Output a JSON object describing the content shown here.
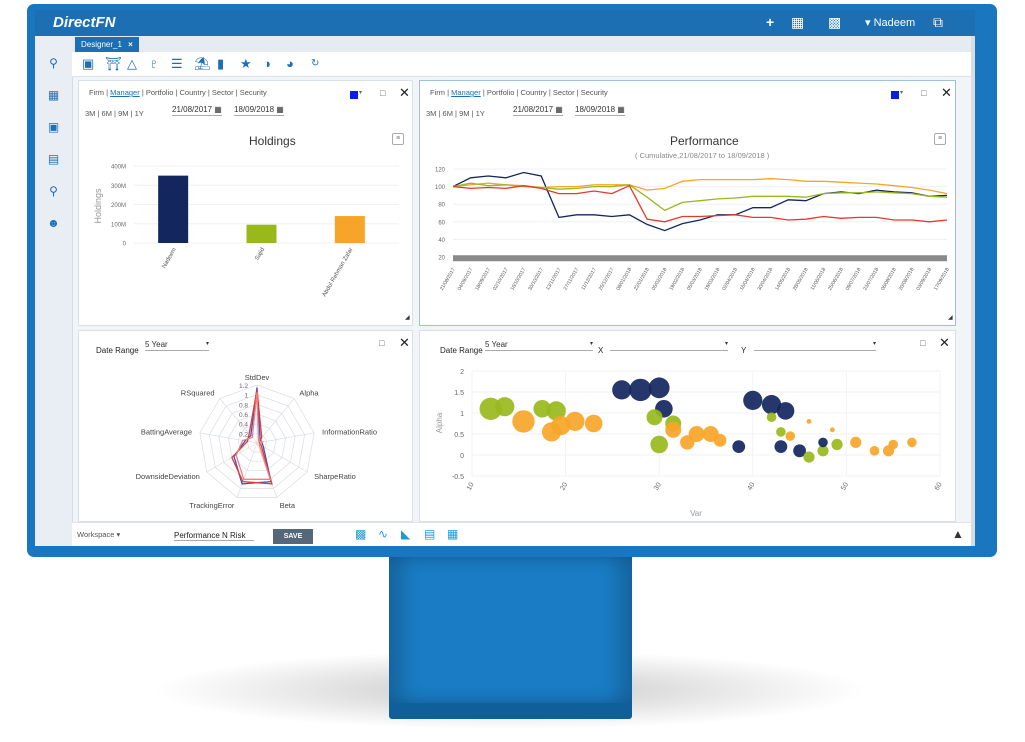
{
  "app": {
    "brand": "DirectFN",
    "user": "Nadeem"
  },
  "tabs": [
    {
      "label": "Designer_1",
      "close": "×"
    }
  ],
  "holdings_panel": {
    "filter_items": [
      "Firm",
      "Manager",
      "Portfolio",
      "Country",
      "Sector",
      "Security"
    ],
    "ranges": [
      "3M",
      "6M",
      "9M",
      "1Y"
    ],
    "from_date": "21/08/2017",
    "to_date": "18/09/2018",
    "title": "Holdings"
  },
  "performance_panel": {
    "filter_items": [
      "Firm",
      "Manager",
      "Portfolio",
      "Country",
      "Sector",
      "Security"
    ],
    "ranges": [
      "3M",
      "6M",
      "9M",
      "1Y"
    ],
    "from_date": "21/08/2017",
    "to_date": "18/09/2018",
    "title": "Performance",
    "subtitle": "( Cumulative,21/08/2017 to 18/09/2018 )"
  },
  "risk_panel": {
    "date_range_label": "Date Range",
    "date_range_value": "5 Year"
  },
  "scatter_panel": {
    "date_range_label": "Date Range",
    "date_range_value": "5 Year",
    "x_label": "X",
    "y_label": "Y"
  },
  "footer": {
    "workspace_label": "Workspace",
    "workspace_value": "Performance N Risk",
    "save_label": "SAVE"
  },
  "colors": {
    "accent": "#1d6fb4",
    "navy": "#14265e",
    "green": "#99b81c",
    "orange": "#f7a528",
    "red": "#e8382c",
    "color_picker": "#0b1de8"
  },
  "chart_data": [
    {
      "type": "bar",
      "title": "Holdings",
      "ylabel": "Holdings",
      "categories": [
        "Nadeem",
        "Sajid",
        "Abdul Rehman Zafar"
      ],
      "values": [
        350,
        95,
        140
      ],
      "ylim": [
        0,
        400
      ],
      "yticks": [
        "0",
        "100M",
        "200M",
        "300M",
        "400M"
      ],
      "colors": [
        "#14265e",
        "#99b81c",
        "#f7a528"
      ]
    },
    {
      "type": "line",
      "title": "Performance",
      "subtitle": "( Cumulative,21/08/2017 to 18/09/2018 )",
      "ylim": [
        20,
        120
      ],
      "yticks": [
        20,
        40,
        60,
        80,
        100,
        120
      ],
      "x": [
        "21/08/2017",
        "04/09/2017",
        "18/09/2017",
        "02/10/2017",
        "16/10/2017",
        "30/10/2017",
        "13/11/2017",
        "27/11/2017",
        "11/12/2017",
        "25/12/2017",
        "08/01/2018",
        "22/01/2018",
        "05/02/2018",
        "19/02/2018",
        "05/03/2018",
        "19/03/2018",
        "02/04/2018",
        "16/04/2018",
        "30/04/2018",
        "14/05/2018",
        "28/05/2018",
        "11/06/2018",
        "25/06/2018",
        "09/07/2018",
        "23/07/2018",
        "06/08/2018",
        "20/08/2018",
        "03/09/2018",
        "17/09/2018"
      ],
      "series": [
        {
          "color": "#14265e",
          "values": [
            100,
            110,
            112,
            110,
            116,
            112,
            65,
            68,
            68,
            66,
            68,
            57,
            50,
            58,
            62,
            68,
            68,
            76,
            76,
            85,
            84,
            92,
            94,
            92,
            96,
            94,
            93,
            89,
            90
          ]
        },
        {
          "color": "#f7a528",
          "values": [
            100,
            102,
            104,
            102,
            101,
            99,
            100,
            100,
            102,
            102,
            102,
            96,
            98,
            106,
            108,
            108,
            108,
            108,
            109,
            108,
            106,
            106,
            105,
            104,
            103,
            101,
            99,
            96,
            92
          ]
        },
        {
          "color": "#99b81c",
          "values": [
            100,
            104,
            101,
            102,
            100,
            99,
            97,
            98,
            100,
            100,
            102,
            88,
            73,
            82,
            84,
            86,
            87,
            89,
            89,
            89,
            88,
            92,
            93,
            93,
            94,
            93,
            92,
            89,
            88
          ]
        },
        {
          "color": "#e8382c",
          "values": [
            100,
            98,
            99,
            98,
            101,
            98,
            92,
            92,
            95,
            92,
            101,
            63,
            60,
            66,
            66,
            67,
            68,
            65,
            65,
            62,
            63,
            66,
            64,
            65,
            65,
            62,
            62,
            60,
            62
          ]
        }
      ]
    },
    {
      "type": "radar",
      "axes": [
        "StdDev",
        "Alpha",
        "InformationRatio",
        "SharpeRatio",
        "Beta",
        "TrackingError",
        "DownsideDeviation",
        "BattingAverage",
        "RSquared"
      ],
      "rticks": [
        "0.2",
        "0.4",
        "0.6",
        "0.8",
        "1",
        "1.2"
      ],
      "series": [
        {
          "color": "#3a56c8",
          "values": [
            1.15,
            0.1,
            0.1,
            0.15,
            0.85,
            0.9,
            0.55,
            0.25,
            0.2
          ]
        },
        {
          "color": "#e8382c",
          "values": [
            1.1,
            0.15,
            0.05,
            0.1,
            0.9,
            0.85,
            0.6,
            0.2,
            0.25
          ]
        },
        {
          "color": "#f08080",
          "values": [
            1.05,
            0.05,
            0.12,
            0.05,
            0.8,
            0.8,
            0.5,
            0.3,
            0.15
          ]
        }
      ]
    },
    {
      "type": "scatter",
      "xlabel": "Var",
      "ylabel": "Alpha",
      "xlim": [
        10,
        60
      ],
      "ylim": [
        -0.5,
        2
      ],
      "xticks": [
        10,
        20,
        30,
        40,
        50,
        60
      ],
      "yticks": [
        -0.5,
        0,
        0.5,
        1,
        1.5,
        2
      ],
      "points": [
        {
          "x": 12,
          "y": 1.1,
          "s": 14,
          "c": "#99b81c"
        },
        {
          "x": 13.5,
          "y": 1.15,
          "s": 12,
          "c": "#99b81c"
        },
        {
          "x": 15.5,
          "y": 0.8,
          "s": 14,
          "c": "#f7a528"
        },
        {
          "x": 17.5,
          "y": 1.1,
          "s": 11,
          "c": "#99b81c"
        },
        {
          "x": 19,
          "y": 1.05,
          "s": 12,
          "c": "#99b81c"
        },
        {
          "x": 18.5,
          "y": 0.55,
          "s": 12,
          "c": "#f7a528"
        },
        {
          "x": 19.5,
          "y": 0.7,
          "s": 12,
          "c": "#f7a528"
        },
        {
          "x": 21,
          "y": 0.8,
          "s": 12,
          "c": "#f7a528"
        },
        {
          "x": 23,
          "y": 0.75,
          "s": 11,
          "c": "#f7a528"
        },
        {
          "x": 26,
          "y": 1.55,
          "s": 12,
          "c": "#14265e"
        },
        {
          "x": 28,
          "y": 1.55,
          "s": 14,
          "c": "#14265e"
        },
        {
          "x": 30,
          "y": 1.6,
          "s": 13,
          "c": "#14265e"
        },
        {
          "x": 30.5,
          "y": 1.1,
          "s": 11,
          "c": "#14265e"
        },
        {
          "x": 29.5,
          "y": 0.9,
          "s": 10,
          "c": "#99b81c"
        },
        {
          "x": 31.5,
          "y": 0.75,
          "s": 10,
          "c": "#99b81c"
        },
        {
          "x": 33,
          "y": 0.3,
          "s": 9,
          "c": "#f7a528"
        },
        {
          "x": 30,
          "y": 0.25,
          "s": 11,
          "c": "#99b81c"
        },
        {
          "x": 31.5,
          "y": 0.6,
          "s": 10,
          "c": "#f7a528"
        },
        {
          "x": 34,
          "y": 0.5,
          "s": 10,
          "c": "#f7a528"
        },
        {
          "x": 35.5,
          "y": 0.5,
          "s": 10,
          "c": "#f7a528"
        },
        {
          "x": 36.5,
          "y": 0.35,
          "s": 8,
          "c": "#f7a528"
        },
        {
          "x": 38.5,
          "y": 0.2,
          "s": 8,
          "c": "#14265e"
        },
        {
          "x": 40,
          "y": 1.3,
          "s": 12,
          "c": "#14265e"
        },
        {
          "x": 42,
          "y": 1.2,
          "s": 12,
          "c": "#14265e"
        },
        {
          "x": 43.5,
          "y": 1.05,
          "s": 11,
          "c": "#14265e"
        },
        {
          "x": 42,
          "y": 0.9,
          "s": 6,
          "c": "#99b81c"
        },
        {
          "x": 43,
          "y": 0.55,
          "s": 6,
          "c": "#99b81c"
        },
        {
          "x": 44,
          "y": 0.45,
          "s": 6,
          "c": "#f7a528"
        },
        {
          "x": 46,
          "y": 0.8,
          "s": 3,
          "c": "#f7a528"
        },
        {
          "x": 48.5,
          "y": 0.6,
          "s": 3,
          "c": "#f7a528"
        },
        {
          "x": 43,
          "y": 0.2,
          "s": 8,
          "c": "#14265e"
        },
        {
          "x": 45,
          "y": 0.1,
          "s": 8,
          "c": "#14265e"
        },
        {
          "x": 46,
          "y": -0.05,
          "s": 7,
          "c": "#99b81c"
        },
        {
          "x": 47.5,
          "y": 0.1,
          "s": 7,
          "c": "#99b81c"
        },
        {
          "x": 47.5,
          "y": 0.3,
          "s": 6,
          "c": "#14265e"
        },
        {
          "x": 49,
          "y": 0.25,
          "s": 7,
          "c": "#99b81c"
        },
        {
          "x": 51,
          "y": 0.3,
          "s": 7,
          "c": "#f7a528"
        },
        {
          "x": 53,
          "y": 0.1,
          "s": 6,
          "c": "#f7a528"
        },
        {
          "x": 54.5,
          "y": 0.1,
          "s": 7,
          "c": "#f7a528"
        },
        {
          "x": 55,
          "y": 0.25,
          "s": 6,
          "c": "#f7a528"
        },
        {
          "x": 57,
          "y": 0.3,
          "s": 6,
          "c": "#f7a528"
        }
      ]
    }
  ]
}
